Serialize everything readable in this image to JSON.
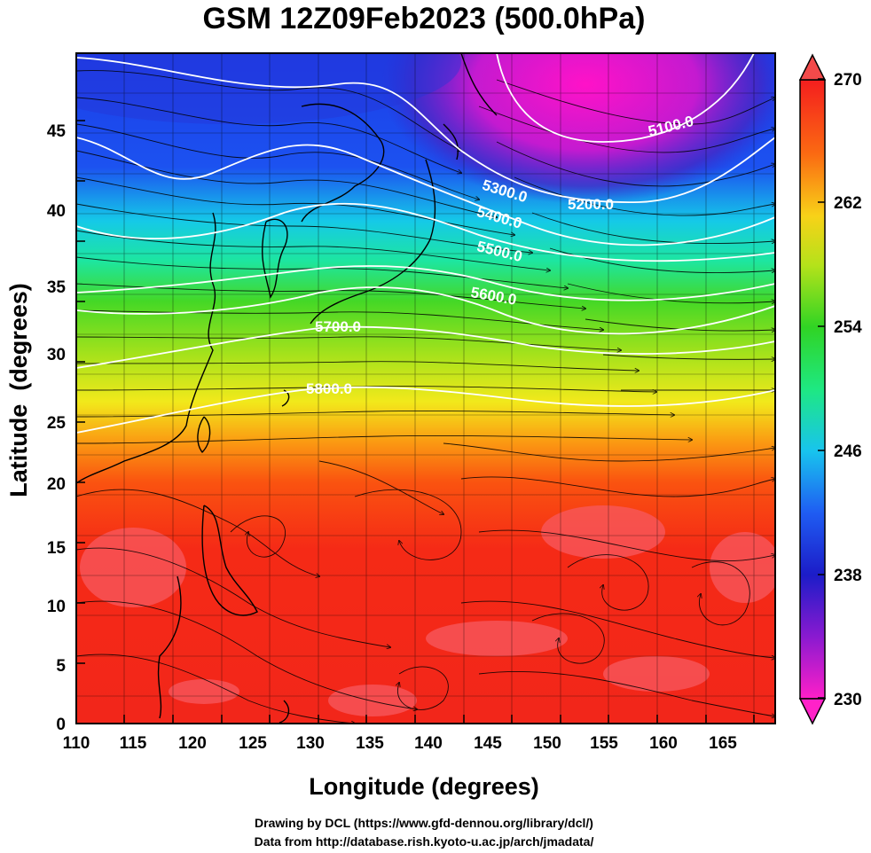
{
  "title": "GSM 12Z09Feb2023 (500.0hPa)",
  "xlabel": "Longitude (degrees)",
  "ylabel": "Latitude  (degrees)",
  "x_ticks": [
    "110",
    "115",
    "120",
    "125",
    "130",
    "135",
    "140",
    "145",
    "150",
    "155",
    "160",
    "165"
  ],
  "y_ticks": [
    "0",
    "5",
    "10",
    "15",
    "20",
    "25",
    "30",
    "35",
    "40",
    "45"
  ],
  "colorbar": {
    "ticks": [
      "230",
      "238",
      "246",
      "254",
      "262",
      "270"
    ],
    "min": 230,
    "max": 270
  },
  "contour_labels": [
    "5100.0",
    "5200.0",
    "5300.0",
    "5400.0",
    "5500.0",
    "5600.0",
    "5700.0",
    "5800.0"
  ],
  "credits": {
    "line1": "Drawing by DCL (https://www.gfd-dennou.org/library/dcl/)",
    "line2": "Data from http://database.rish.kyoto-u.ac.jp/arch/jmadata/"
  },
  "map": {
    "lon_range": [
      110,
      170
    ],
    "lat_range": [
      0,
      50
    ],
    "fill_variable_range": [
      230,
      270
    ],
    "contour_values": [
      5100,
      5200,
      5300,
      5400,
      5500,
      5600,
      5700,
      5800
    ]
  },
  "colors": {
    "contour": "#ffffff",
    "coastline": "#000000",
    "streamline": "#000000"
  }
}
